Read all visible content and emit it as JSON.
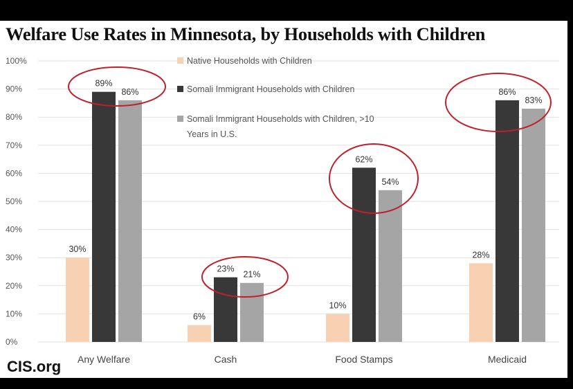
{
  "chart_data": {
    "type": "bar",
    "title": "Welfare Use Rates in Minnesota, by Households with Children",
    "xlabel": "",
    "ylabel": "",
    "ylim": [
      0,
      100
    ],
    "yticks": [
      "0%",
      "10%",
      "20%",
      "30%",
      "40%",
      "50%",
      "60%",
      "70%",
      "80%",
      "90%",
      "100%"
    ],
    "grid": true,
    "legend_position": "top-center",
    "categories": [
      "Any Welfare",
      "Cash",
      "Food Stamps",
      "Medicaid"
    ],
    "series": [
      {
        "name": "Native Households with Children",
        "color": "#F8D0B2",
        "values": [
          30,
          6,
          10,
          28
        ],
        "labels": [
          "30%",
          "6%",
          "10%",
          "28%"
        ]
      },
      {
        "name": "Somali Immigrant Households with Children",
        "color": "#383838",
        "values": [
          89,
          23,
          62,
          86
        ],
        "labels": [
          "89%",
          "23%",
          "62%",
          "86%"
        ]
      },
      {
        "name": "Somali Immigrant Households with Children, >10 Years in U.S.",
        "legend_lines": [
          "Somali Immigrant Households with Children, >10",
          "Years in U.S."
        ],
        "color": "#A5A5A5",
        "values": [
          86,
          21,
          54,
          83
        ],
        "labels": [
          "86%",
          "21%",
          "54%",
          "83%"
        ]
      }
    ],
    "annotations": [
      "highlight circles around Somali bars in each category"
    ],
    "annotation_color": "#C0202A"
  },
  "brand": "CIS.org"
}
